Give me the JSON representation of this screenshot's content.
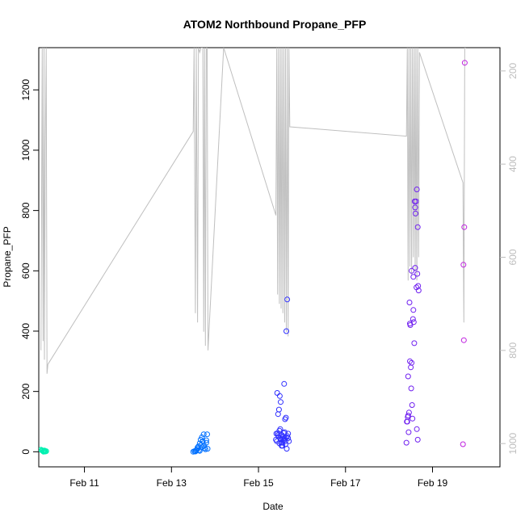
{
  "chart_data": {
    "type": "scatter",
    "title": "ATOM2 Northbound Propane_PFP",
    "xlabel": "Date",
    "ylabel": "Propane_PFP",
    "x_unit": "days in February",
    "xlim": [
      9.95,
      20.55
    ],
    "ylim": [
      -50,
      1340
    ],
    "x_ticks": [
      11,
      13,
      15,
      17,
      19
    ],
    "x_tick_labels": [
      "Feb 11",
      "Feb 13",
      "Feb 15",
      "Feb 17",
      "Feb 19"
    ],
    "y_ticks": [
      0,
      200,
      400,
      600,
      800,
      1000,
      1200
    ],
    "y_tick_labels": [
      "0",
      "200",
      "400",
      "600",
      "800",
      "1000",
      "1200"
    ],
    "y2_lim": [
      1050,
      150
    ],
    "y2_ticks": [
      200,
      400,
      600,
      800,
      1000
    ],
    "y2_tick_labels": [
      "200",
      "400",
      "600",
      "800",
      "1000"
    ],
    "grid": false,
    "legend": "none",
    "colors": {
      "axis": "#000000",
      "secondary_axis": "#bdbdbd",
      "trace": "#bfbfbf",
      "point_scale": [
        "#00f0b0",
        "#00c8f0",
        "#0070ff",
        "#3030ff",
        "#7020f0",
        "#c020e0"
      ]
    },
    "series": [
      {
        "kind": "points",
        "x": [
          10.0,
          10.03,
          10.05,
          10.07,
          10.08,
          10.1,
          10.12,
          10.02,
          10.06,
          10.09
        ],
        "y": [
          7,
          4,
          3,
          2,
          4,
          1,
          2,
          5,
          0,
          3
        ]
      },
      {
        "kind": "points",
        "x": [
          13.5,
          13.53,
          13.56,
          13.58,
          13.6,
          13.62,
          13.63,
          13.65,
          13.67,
          13.68,
          13.7,
          13.72,
          13.74,
          13.76,
          13.78,
          13.8,
          13.82,
          13.55,
          13.6,
          13.65,
          13.7,
          13.75,
          13.8,
          13.83
        ],
        "y": [
          0,
          2,
          4,
          6,
          10,
          18,
          5,
          28,
          40,
          22,
          15,
          35,
          58,
          12,
          8,
          30,
          58,
          1,
          14,
          3,
          48,
          20,
          38,
          10
        ]
      },
      {
        "kind": "points",
        "x": [
          15.4,
          15.42,
          15.44,
          15.46,
          15.48,
          15.5,
          15.52,
          15.54,
          15.56,
          15.58,
          15.6,
          15.62,
          15.64,
          15.66,
          15.68,
          15.7,
          15.43,
          15.45,
          15.47,
          15.49,
          15.51,
          15.53,
          15.55,
          15.57,
          15.59,
          15.61,
          15.63,
          15.65,
          15.41,
          15.5,
          15.55,
          15.6,
          15.62,
          15.64,
          15.66,
          15.45,
          15.48,
          15.52,
          15.58,
          15.68
        ],
        "y": [
          40,
          35,
          60,
          50,
          70,
          45,
          30,
          55,
          42,
          38,
          65,
          25,
          48,
          52,
          60,
          35,
          195,
          125,
          140,
          185,
          165,
          20,
          30,
          50,
          225,
          108,
          113,
          10,
          60,
          75,
          20,
          45,
          35,
          400,
          505,
          55,
          28,
          40,
          62,
          45
        ]
      },
      {
        "kind": "points",
        "x": [
          18.4,
          18.42,
          18.44,
          18.46,
          18.48,
          18.5,
          18.52,
          18.54,
          18.56,
          18.58,
          18.6,
          18.62,
          18.64,
          18.66,
          18.68,
          18.43,
          18.45,
          18.47,
          18.49,
          18.51,
          18.53,
          18.55,
          18.57,
          18.59,
          18.61,
          18.63,
          18.65,
          18.67,
          18.41,
          18.44,
          18.48,
          18.52,
          18.56,
          18.6,
          18.64,
          18.66
        ],
        "y": [
          30,
          100,
          250,
          130,
          425,
          280,
          295,
          110,
          470,
          360,
          810,
          830,
          870,
          745,
          535,
          115,
          65,
          495,
          420,
          210,
          155,
          440,
          430,
          830,
          790,
          545,
          590,
          550,
          100,
          120,
          300,
          600,
          580,
          610,
          75,
          40
        ]
      },
      {
        "kind": "points",
        "x": [
          19.7,
          19.71,
          19.72,
          19.73,
          19.74
        ],
        "y": [
          25,
          620,
          370,
          745,
          1290
        ]
      },
      {
        "kind": "trace",
        "note": "pressure trace on secondary axis",
        "x": [
          10.0,
          10.03,
          10.05,
          10.07,
          10.08,
          10.1,
          10.12,
          10.14,
          10.16,
          13.5,
          13.52,
          13.55,
          13.57,
          13.6,
          13.62,
          13.65,
          13.68,
          13.7,
          13.72,
          13.74,
          13.76,
          13.78,
          13.8,
          13.82,
          13.84,
          14.2,
          15.4,
          15.42,
          15.44,
          15.46,
          15.48,
          15.5,
          15.52,
          15.54,
          15.56,
          15.58,
          15.6,
          15.62,
          15.64,
          15.66,
          15.68,
          15.7,
          15.72,
          18.4,
          18.42,
          18.44,
          18.46,
          18.48,
          18.5,
          18.52,
          18.54,
          18.56,
          18.58,
          18.6,
          18.62,
          18.64,
          18.66,
          18.68,
          18.7,
          19.7,
          19.72,
          19.74,
          19.76
        ],
        "y": [
          800,
          150,
          780,
          150,
          820,
          360,
          150,
          850,
          830,
          330,
          150,
          720,
          150,
          740,
          150,
          160,
          150,
          150,
          150,
          760,
          150,
          790,
          150,
          150,
          800,
          150,
          510,
          150,
          680,
          150,
          700,
          150,
          710,
          150,
          720,
          150,
          740,
          150,
          760,
          150,
          770,
          150,
          320,
          340,
          150,
          650,
          150,
          620,
          150,
          640,
          150,
          600,
          150,
          630,
          150,
          650,
          150,
          600,
          160,
          440,
          740,
          150,
          150
        ]
      }
    ]
  }
}
